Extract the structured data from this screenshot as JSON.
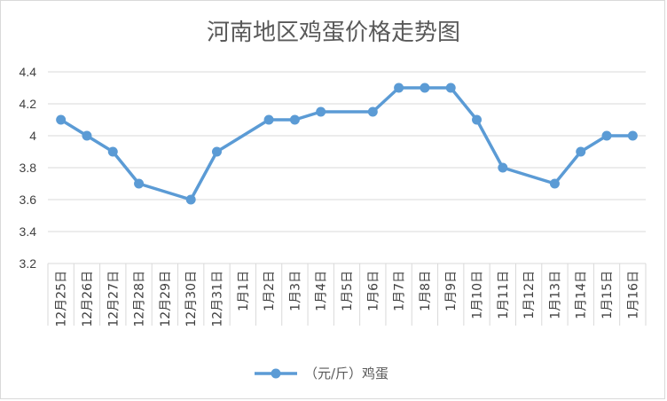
{
  "chart_data": {
    "type": "line",
    "title": "河南地区鸡蛋价格走势图",
    "xlabel": "",
    "ylabel": "",
    "ylim": [
      3.2,
      4.4
    ],
    "yticks": [
      "3.2",
      "3.4",
      "3.6",
      "3.8",
      "4",
      "4.2",
      "4.4"
    ],
    "grid": true,
    "legend_position": "bottom",
    "categories": [
      "12月25日",
      "12月26日",
      "12月27日",
      "12月28日",
      "12月29日",
      "12月30日",
      "12月31日",
      "1月1日",
      "1月2日",
      "1月3日",
      "1月4日",
      "1月5日",
      "1月6日",
      "1月7日",
      "1月8日",
      "1月9日",
      "1月10日",
      "1月11日",
      "1月12日",
      "1月13日",
      "1月14日",
      "1月15日",
      "1月16日"
    ],
    "series": [
      {
        "name": "（元/斤）鸡蛋",
        "color": "#5b9bd5",
        "points": [
          {
            "x": "12月25日",
            "y": 4.1
          },
          {
            "x": "12月26日",
            "y": 4.0
          },
          {
            "x": "12月27日",
            "y": 3.9
          },
          {
            "x": "12月28日",
            "y": 3.7
          },
          {
            "x": "12月30日",
            "y": 3.6
          },
          {
            "x": "12月31日",
            "y": 3.9
          },
          {
            "x": "1月2日",
            "y": 4.1
          },
          {
            "x": "1月3日",
            "y": 4.1
          },
          {
            "x": "1月4日",
            "y": 4.15
          },
          {
            "x": "1月6日",
            "y": 4.15
          },
          {
            "x": "1月7日",
            "y": 4.3
          },
          {
            "x": "1月8日",
            "y": 4.3
          },
          {
            "x": "1月9日",
            "y": 4.3
          },
          {
            "x": "1月10日",
            "y": 4.1
          },
          {
            "x": "1月11日",
            "y": 3.8
          },
          {
            "x": "1月13日",
            "y": 3.7
          },
          {
            "x": "1月14日",
            "y": 3.9
          },
          {
            "x": "1月15日",
            "y": 4.0
          },
          {
            "x": "1月16日",
            "y": 4.0
          }
        ]
      }
    ]
  }
}
